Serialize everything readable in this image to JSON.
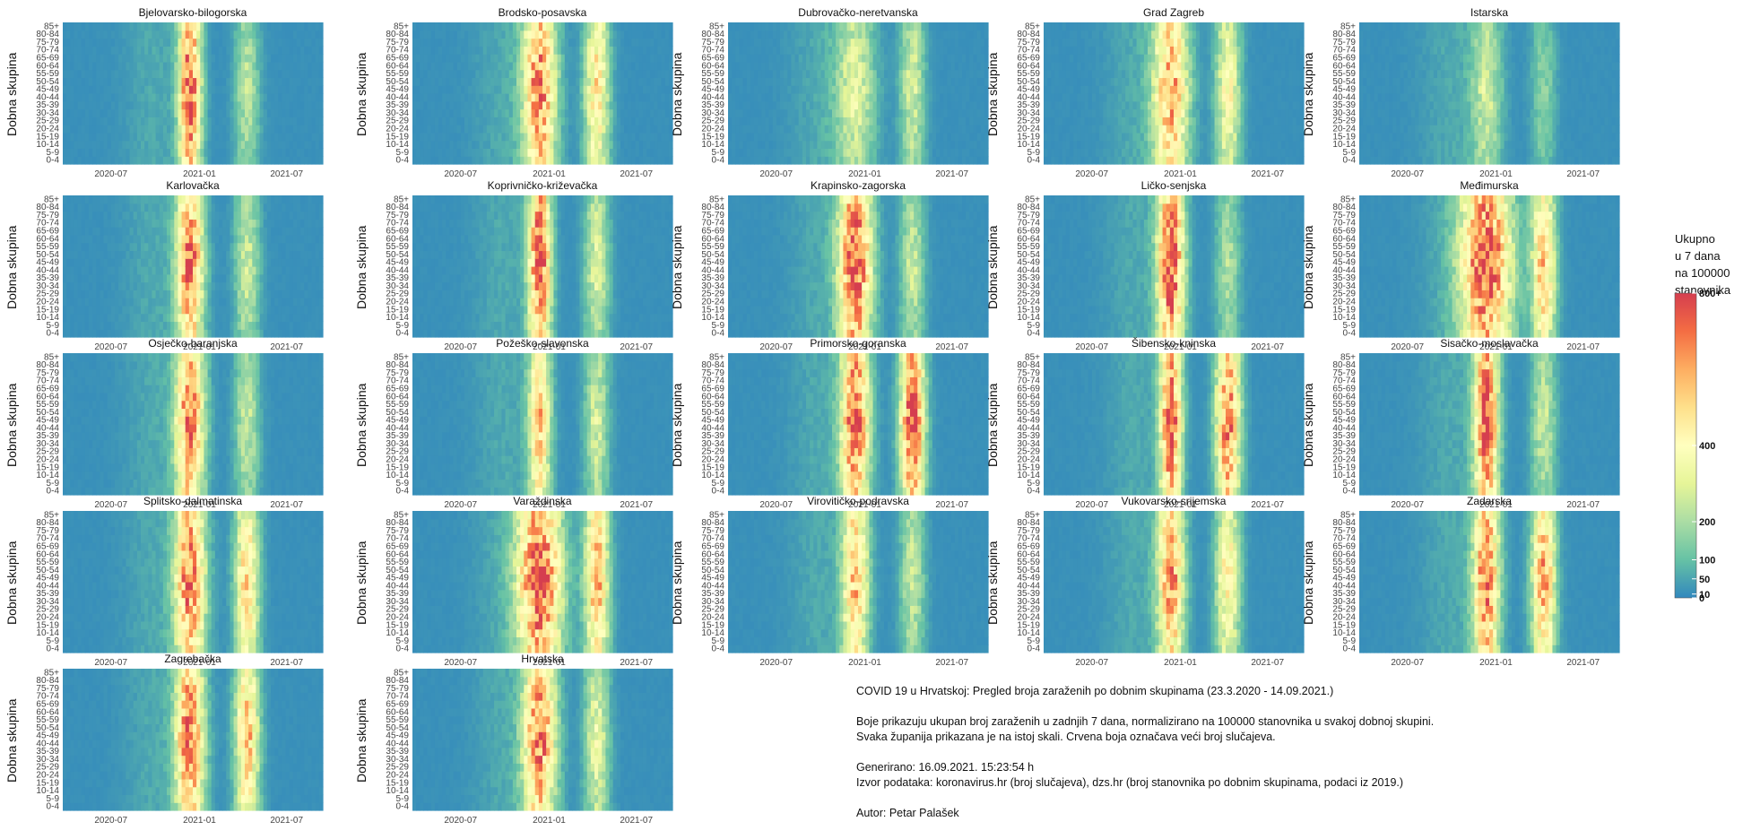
{
  "chart_data": {
    "type": "heatmap",
    "facet_by": "county",
    "y_label": "Dobna skupina",
    "age_groups": [
      "0-4",
      "5-9",
      "10-14",
      "15-19",
      "20-24",
      "25-29",
      "30-34",
      "35-39",
      "40-44",
      "45-49",
      "50-54",
      "55-59",
      "60-64",
      "65-69",
      "70-74",
      "75-79",
      "80-84",
      "85+"
    ],
    "x_tick_labels": [
      "2020-07",
      "2021-01",
      "2021-07"
    ],
    "x_range": [
      "2020-03-23",
      "2021-09-14"
    ],
    "color_scale": {
      "title_lines": [
        "Ukupno",
        "u 7 dana",
        "na 100000",
        "stanovnika"
      ],
      "tick_labels": [
        "0",
        "10",
        "50",
        "100",
        "200",
        "400",
        "800+"
      ],
      "tick_values": [
        0,
        10,
        50,
        100,
        200,
        400,
        800
      ],
      "palette": [
        "#3288bd",
        "#66c2a5",
        "#abdda4",
        "#e6f598",
        "#ffffbf",
        "#fee08b",
        "#fdae61",
        "#f46d43",
        "#d53e4f"
      ]
    },
    "panels": [
      {
        "name": "Bjelovarsko-bilogorska",
        "wave1_peak": 760,
        "wave2_peak": 230,
        "wave1_width": 1.0
      },
      {
        "name": "Brodsko-posavska",
        "wave1_peak": 700,
        "wave2_peak": 480,
        "wave1_width": 1.5
      },
      {
        "name": "Dubrovačko-neretvanska",
        "wave1_peak": 300,
        "wave2_peak": 280,
        "wave1_width": 1.8
      },
      {
        "name": "Grad Zagreb",
        "wave1_peak": 620,
        "wave2_peak": 400,
        "wave1_width": 1.6
      },
      {
        "name": "Istarska",
        "wave1_peak": 260,
        "wave2_peak": 150,
        "wave1_width": 1.4
      },
      {
        "name": "Karlovačka",
        "wave1_peak": 720,
        "wave2_peak": 260,
        "wave1_width": 1.2
      },
      {
        "name": "Koprivničko-križevačka",
        "wave1_peak": 800,
        "wave2_peak": 300,
        "wave1_width": 1.0
      },
      {
        "name": "Krapinsko-zagorska",
        "wave1_peak": 800,
        "wave2_peak": 250,
        "wave1_width": 1.5
      },
      {
        "name": "Ličko-senjska",
        "wave1_peak": 800,
        "wave2_peak": 200,
        "wave1_width": 1.2
      },
      {
        "name": "Međimurska",
        "wave1_peak": 800,
        "wave2_peak": 550,
        "wave1_width": 2.3
      },
      {
        "name": "Osječko-baranjska",
        "wave1_peak": 700,
        "wave2_peak": 250,
        "wave1_width": 1.3
      },
      {
        "name": "Požeško-slavonska",
        "wave1_peak": 560,
        "wave2_peak": 270,
        "wave1_width": 1.0
      },
      {
        "name": "Primorsko-goranska",
        "wave1_peak": 760,
        "wave2_peak": 780,
        "wave1_width": 1.3
      },
      {
        "name": "Šibensko-kninska",
        "wave1_peak": 760,
        "wave2_peak": 720,
        "wave1_width": 1.0
      },
      {
        "name": "Sisačko-moslavačka",
        "wave1_peak": 780,
        "wave2_peak": 250,
        "wave1_width": 1.1
      },
      {
        "name": "Splitsko-dalmatinska",
        "wave1_peak": 700,
        "wave2_peak": 500,
        "wave1_width": 1.4
      },
      {
        "name": "Varaždinska",
        "wave1_peak": 800,
        "wave2_peak": 600,
        "wave1_width": 2.0
      },
      {
        "name": "Virovitičko-podravska",
        "wave1_peak": 580,
        "wave2_peak": 250,
        "wave1_width": 1.2
      },
      {
        "name": "Vukovarsko-srijemska",
        "wave1_peak": 650,
        "wave2_peak": 450,
        "wave1_width": 1.2
      },
      {
        "name": "Zadarska",
        "wave1_peak": 720,
        "wave2_peak": 600,
        "wave1_width": 1.2
      },
      {
        "name": "Zagrebačka",
        "wave1_peak": 720,
        "wave2_peak": 560,
        "wave1_width": 1.3
      },
      {
        "name": "Hrvatska",
        "wave1_peak": 700,
        "wave2_peak": 330,
        "wave1_width": 1.5
      }
    ]
  },
  "notes": {
    "title": "COVID 19 u Hrvatskoj: Pregled broja zaraženih po dobnim skupinama (23.3.2020 - 14.09.2021.)",
    "line1": "Boje prikazuju ukupan broj zaraženih u zadnjih 7 dana, normalizirano na 100000 stanovnika u svakoj dobnoj skupini.",
    "line2": "Svaka županija prikazana je na istoj skali. Crvena boja označava veći broj slučajeva.",
    "generated": "Generirano: 16.09.2021. 15:23:54 h",
    "source": "Izvor podataka: koronavirus.hr (broj slučajeva), dzs.hr (broj stanovnika po dobnim skupinama, podaci iz 2019.)",
    "author": "Autor: Petar Palašek"
  }
}
